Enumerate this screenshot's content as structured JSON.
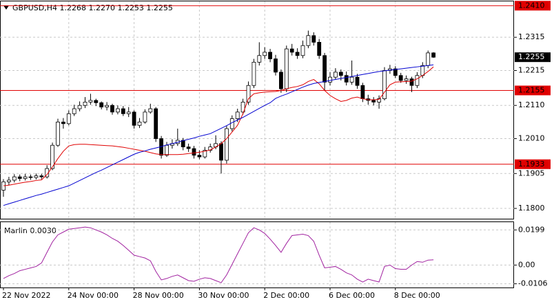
{
  "chart_data": [
    {
      "type": "candlestick",
      "title": "GBPUSD,H4  1.2268 1.2270 1.2253 1.2255",
      "categories": [
        "22 Nov 2022",
        null,
        null,
        null,
        null,
        null,
        null,
        null,
        null,
        null,
        null,
        null,
        "24 Nov 00:00",
        null,
        null,
        null,
        null,
        null,
        null,
        null,
        null,
        null,
        null,
        null,
        "28 Nov 00:00",
        null,
        null,
        null,
        null,
        null,
        null,
        null,
        null,
        null,
        null,
        null,
        "30 Nov 00:00",
        null,
        null,
        null,
        null,
        null,
        null,
        null,
        null,
        null,
        null,
        null,
        "2 Dec 00:00",
        null,
        null,
        null,
        null,
        null,
        null,
        null,
        null,
        null,
        null,
        null,
        "6 Dec 00:00",
        null,
        null,
        null,
        null,
        null,
        null,
        null,
        null,
        null,
        null,
        null,
        "8 Dec 00:00",
        null,
        null,
        null,
        null,
        null,
        null,
        null
      ],
      "open": [
        1.1855,
        1.188,
        1.1885,
        1.1895,
        1.189,
        1.1895,
        1.1893,
        1.1898,
        1.1895,
        1.192,
        1.199,
        1.206,
        1.2055,
        1.2085,
        1.21,
        1.211,
        1.212,
        1.2125,
        1.2118,
        1.2105,
        1.211,
        1.209,
        1.21,
        1.2085,
        1.209,
        1.205,
        1.206,
        1.209,
        1.21,
        1.201,
        1.196,
        1.199,
        1.1995,
        1.2005,
        1.1985,
        1.198,
        1.196,
        1.1955,
        1.1975,
        1.1985,
        1.1995,
        1.1945,
        1.204,
        1.207,
        1.209,
        1.212,
        1.217,
        1.224,
        1.226,
        1.227,
        1.225,
        1.221,
        1.216,
        1.228,
        1.227,
        1.226,
        1.229,
        1.232,
        1.23,
        1.226,
        1.218,
        1.2195,
        1.221,
        1.22,
        1.218,
        1.2195,
        1.217,
        1.213,
        1.2125,
        1.212,
        1.213,
        1.2215,
        1.222,
        1.22,
        1.2185,
        1.219,
        1.217,
        1.22,
        1.223,
        1.2268
      ],
      "high": [
        1.1888,
        1.1895,
        1.1903,
        1.1902,
        1.1904,
        1.1902,
        1.1905,
        1.1904,
        1.193,
        1.1998,
        1.207,
        1.2072,
        1.2095,
        1.2112,
        1.2122,
        1.2135,
        1.2145,
        1.213,
        1.2122,
        1.212,
        1.2115,
        1.211,
        1.2108,
        1.2105,
        1.2095,
        1.2072,
        1.2098,
        1.2115,
        1.2105,
        1.2018,
        1.2,
        1.2008,
        1.204,
        1.2012,
        1.1995,
        1.1988,
        1.1975,
        1.1985,
        1.1995,
        1.202,
        1.2002,
        1.2048,
        1.208,
        1.21,
        1.213,
        1.2182,
        1.225,
        1.23,
        1.2285,
        1.228,
        1.2262,
        1.2218,
        1.229,
        1.2295,
        1.2282,
        1.2305,
        1.2335,
        1.233,
        1.231,
        1.2268,
        1.221,
        1.2222,
        1.2218,
        1.2212,
        1.2245,
        1.2205,
        1.2178,
        1.2142,
        1.2135,
        1.214,
        1.2225,
        1.2232,
        1.2228,
        1.2208,
        1.22,
        1.2196,
        1.221,
        1.224,
        1.2275,
        1.227
      ],
      "low": [
        1.1835,
        1.187,
        1.1878,
        1.1882,
        1.1884,
        1.1886,
        1.1887,
        1.1888,
        1.189,
        1.1915,
        1.1985,
        1.204,
        1.205,
        1.2078,
        1.2092,
        1.2102,
        1.2112,
        1.2108,
        1.2098,
        1.2095,
        1.2082,
        1.2083,
        1.2078,
        1.2075,
        1.204,
        1.2042,
        1.2055,
        1.2085,
        1.2,
        1.195,
        1.1955,
        1.198,
        1.1988,
        1.1975,
        1.197,
        1.195,
        1.1948,
        1.195,
        1.1968,
        1.1978,
        1.1905,
        1.1935,
        1.2032,
        1.206,
        1.2082,
        1.2112,
        1.2162,
        1.223,
        1.225,
        1.224,
        1.22,
        1.2148,
        1.215,
        1.226,
        1.225,
        1.2252,
        1.2282,
        1.229,
        1.225,
        1.2155,
        1.217,
        1.2188,
        1.2185,
        1.217,
        1.2172,
        1.216,
        1.212,
        1.2112,
        1.211,
        1.21,
        1.2125,
        1.2205,
        1.2192,
        1.2178,
        1.2175,
        1.215,
        1.2162,
        1.2192,
        1.2222,
        1.2253
      ],
      "close": [
        1.188,
        1.1885,
        1.1895,
        1.189,
        1.1895,
        1.1893,
        1.1898,
        1.1895,
        1.192,
        1.199,
        1.206,
        1.2055,
        1.2085,
        1.21,
        1.211,
        1.212,
        1.2125,
        1.2118,
        1.2105,
        1.211,
        1.209,
        1.21,
        1.2085,
        1.209,
        1.205,
        1.206,
        1.209,
        1.21,
        1.201,
        1.196,
        1.199,
        1.1995,
        1.2005,
        1.1985,
        1.198,
        1.196,
        1.1955,
        1.1975,
        1.1985,
        1.1995,
        1.1945,
        1.204,
        1.207,
        1.209,
        1.212,
        1.217,
        1.224,
        1.226,
        1.227,
        1.225,
        1.221,
        1.216,
        1.228,
        1.227,
        1.226,
        1.229,
        1.232,
        1.23,
        1.226,
        1.218,
        1.2195,
        1.221,
        1.22,
        1.218,
        1.2195,
        1.217,
        1.213,
        1.2125,
        1.212,
        1.213,
        1.2215,
        1.222,
        1.22,
        1.2185,
        1.219,
        1.217,
        1.22,
        1.223,
        1.2268,
        1.2255
      ],
      "up_color": "#ffffff",
      "down_color": "#000000",
      "lines": [
        {
          "color": "#e00000",
          "values": [
            1.1868,
            1.187,
            1.1873,
            1.1876,
            1.1879,
            1.1881,
            1.1884,
            1.1886,
            1.1902,
            1.1925,
            1.195,
            1.1972,
            1.1988,
            1.1992,
            1.1993,
            1.1993,
            1.1992,
            1.1991,
            1.199,
            1.1989,
            1.1988,
            1.1986,
            1.1984,
            1.1981,
            1.1978,
            1.1975,
            1.1972,
            1.1968,
            1.1964,
            1.1962,
            1.1962,
            1.1962,
            1.1962,
            1.1963,
            1.1965,
            1.1967,
            1.1969,
            1.1972,
            1.1976,
            1.1985,
            1.1995,
            1.201,
            1.203,
            1.205,
            1.2085,
            1.213,
            1.2145,
            1.2148,
            1.215,
            1.2151,
            1.2152,
            1.2155,
            1.216,
            1.2164,
            1.2167,
            1.2172,
            1.2182,
            1.2188,
            1.2175,
            1.2155,
            1.214,
            1.213,
            1.2122,
            1.2125,
            1.2132,
            1.2135,
            1.213,
            1.2127,
            1.2127,
            1.2128,
            1.215,
            1.2172,
            1.218,
            1.2181,
            1.2182,
            1.2183,
            1.219,
            1.22,
            1.2212,
            1.2226
          ]
        },
        {
          "color": "#0000d0",
          "values": [
            1.1809,
            1.1814,
            1.1819,
            1.1824,
            1.1829,
            1.1834,
            1.1839,
            1.1843,
            1.1848,
            1.1853,
            1.1858,
            1.1863,
            1.1868,
            1.1876,
            1.1884,
            1.1892,
            1.19,
            1.1908,
            1.1915,
            1.1923,
            1.1931,
            1.1939,
            1.1947,
            1.1955,
            1.1963,
            1.1969,
            1.1973,
            1.1978,
            1.1982,
            1.1986,
            1.1991,
            1.1995,
            1.1999,
            1.2004,
            1.2008,
            1.2012,
            1.2017,
            1.2021,
            1.2025,
            1.2033,
            1.2041,
            1.2049,
            1.2058,
            1.2066,
            1.2074,
            1.2083,
            1.2092,
            1.2101,
            1.211,
            1.2118,
            1.2131,
            1.2138,
            1.2144,
            1.2151,
            1.2158,
            1.2165,
            1.2171,
            1.2176,
            1.2179,
            1.2182,
            1.2185,
            1.2188,
            1.2191,
            1.2194,
            1.2197,
            1.22,
            1.2203,
            1.2206,
            1.2209,
            1.2212,
            1.2214,
            1.2216,
            1.2218,
            1.222,
            1.2222,
            1.2224,
            1.2226,
            1.2228,
            1.223,
            1.2232
          ]
        }
      ],
      "levels": [
        {
          "value": 1.241,
          "label": "1.2410"
        },
        {
          "value": 1.2155,
          "label": "1.2155"
        },
        {
          "value": 1.1933,
          "label": "1.1933"
        }
      ],
      "level_color": "#e00000",
      "ylim": [
        1.1769,
        1.2423
      ],
      "yticks": [
        1.2315,
        1.2215,
        {
          "value": 1.211,
          "label": "1.2110"
        },
        {
          "value": 1.201,
          "label": "1.2010"
        },
        1.1905,
        {
          "value": 1.18,
          "label": "1.1800"
        }
      ],
      "grid": true
    },
    {
      "type": "line",
      "title": "Marlin 0.0030",
      "color": "#a0209f",
      "values": [
        -0.0076,
        -0.006,
        -0.0048,
        -0.0032,
        -0.0024,
        -0.0016,
        -0.0008,
        0.0012,
        0.0072,
        0.0131,
        0.0171,
        0.0187,
        0.0203,
        0.0207,
        0.0211,
        0.0215,
        0.0211,
        0.0199,
        0.0187,
        0.0171,
        0.0151,
        0.0135,
        0.0111,
        0.0084,
        0.0056,
        0.0048,
        0.004,
        0.0024,
        -0.0036,
        -0.0084,
        -0.0076,
        -0.0064,
        -0.0056,
        -0.0072,
        -0.0088,
        -0.0092,
        -0.008,
        -0.0072,
        -0.0076,
        -0.0088,
        -0.01,
        -0.0056,
        0.0004,
        0.0064,
        0.0123,
        0.0183,
        0.0211,
        0.0199,
        0.0179,
        0.0147,
        0.0111,
        0.0072,
        0.0123,
        0.0167,
        0.0171,
        0.0175,
        0.0167,
        0.0135,
        0.0056,
        -0.0016,
        -0.0012,
        -0.0008,
        -0.0024,
        -0.0044,
        -0.0056,
        -0.008,
        -0.0096,
        -0.008,
        -0.0088,
        -0.0096,
        -0.0008,
        0,
        -0.002,
        -0.0024,
        -0.0024,
        0,
        0.002,
        0.0016,
        0.0028,
        0.003
      ],
      "ylim": [
        -0.0127,
        0.0243
      ],
      "yticks": [
        0.0199,
        {
          "value": 0,
          "label": "0.00"
        },
        -0.0106
      ],
      "grid": true
    }
  ]
}
